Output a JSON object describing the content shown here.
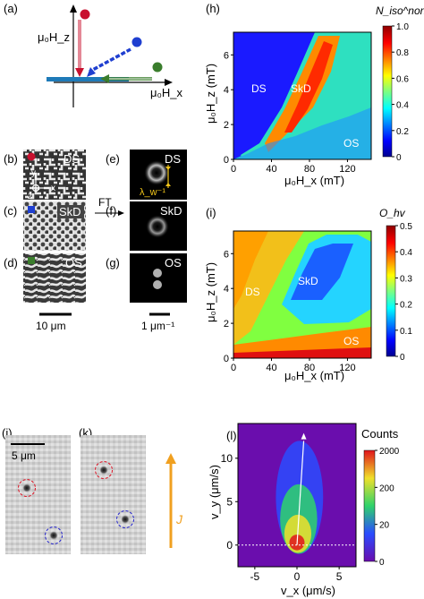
{
  "panels": {
    "a": {
      "letter": "(a)",
      "axis_z_label": "μ₀H_z",
      "axis_x_label": "μ₀H_x",
      "marker_colors": {
        "red": "#c8102e",
        "blue": "#1f3fd0",
        "green": "#3a7d2c"
      }
    },
    "b": {
      "letter": "(b)",
      "tag": "DS",
      "axis_y": "y",
      "axis_x": "x",
      "axis_z": "z",
      "marker_color": "#c8102e"
    },
    "c": {
      "letter": "(c)",
      "tag": "SkD",
      "marker_color": "#1f3fd0"
    },
    "d": {
      "letter": "(d)",
      "tag": "OS",
      "marker_color": "#3a7d2c"
    },
    "e": {
      "letter": "(e)",
      "tag": "DS",
      "lambda": "λ_w⁻¹",
      "arrow_label": "FT"
    },
    "f": {
      "letter": "(f)",
      "tag": "SkD"
    },
    "g": {
      "letter": "(g)",
      "tag": "OS"
    },
    "scalebar_real": "10 μm",
    "scalebar_fourier": "1 μm⁻¹",
    "j": {
      "letter": "(j)",
      "scalebar": "5 μm"
    },
    "k": {
      "letter": "(k)",
      "current": "J"
    }
  },
  "chart_data": [
    {
      "id": "h",
      "letter": "(h)",
      "type": "heatmap",
      "title": "N_iso^norm",
      "xlabel": "μ₀H_x (mT)",
      "ylabel": "μ₀H_z (mT)",
      "xlim": [
        0,
        145
      ],
      "ylim": [
        0,
        7.3
      ],
      "xticks": [
        0,
        40,
        80,
        120
      ],
      "yticks": [
        0,
        2,
        4,
        6
      ],
      "colorbar": {
        "ticks": [
          "0",
          "0.2",
          "0.4",
          "0.6",
          "0.8",
          "1.0"
        ],
        "range": [
          0,
          1
        ]
      },
      "region_labels": [
        "DS",
        "SkD",
        "OS"
      ]
    },
    {
      "id": "i",
      "letter": "(i)",
      "type": "heatmap",
      "title": "O_hv",
      "xlabel": "μ₀H_x (mT)",
      "ylabel": "μ₀H_z (mT)",
      "xlim": [
        0,
        145
      ],
      "ylim": [
        0,
        7.3
      ],
      "xticks": [
        0,
        40,
        80,
        120
      ],
      "yticks": [
        0,
        2,
        4,
        6
      ],
      "colorbar": {
        "ticks": [
          "0",
          "0.1",
          "0.2",
          "0.3",
          "0.4",
          "0.5"
        ],
        "range": [
          0,
          0.5
        ]
      },
      "region_labels": [
        "DS",
        "SkD",
        "OS"
      ]
    },
    {
      "id": "l",
      "letter": "(l)",
      "type": "heatmap",
      "title": "Counts",
      "xlabel": "v_x (μm/s)",
      "ylabel": "v_y (μm/s)",
      "xlim": [
        -7,
        7
      ],
      "ylim": [
        -2.5,
        14
      ],
      "xticks": [
        -5,
        0,
        5
      ],
      "yticks": [
        0,
        5,
        10
      ],
      "colorbar": {
        "ticks": [
          "0",
          "20",
          "200",
          "2000"
        ]
      },
      "peak": [
        0,
        0
      ]
    }
  ]
}
